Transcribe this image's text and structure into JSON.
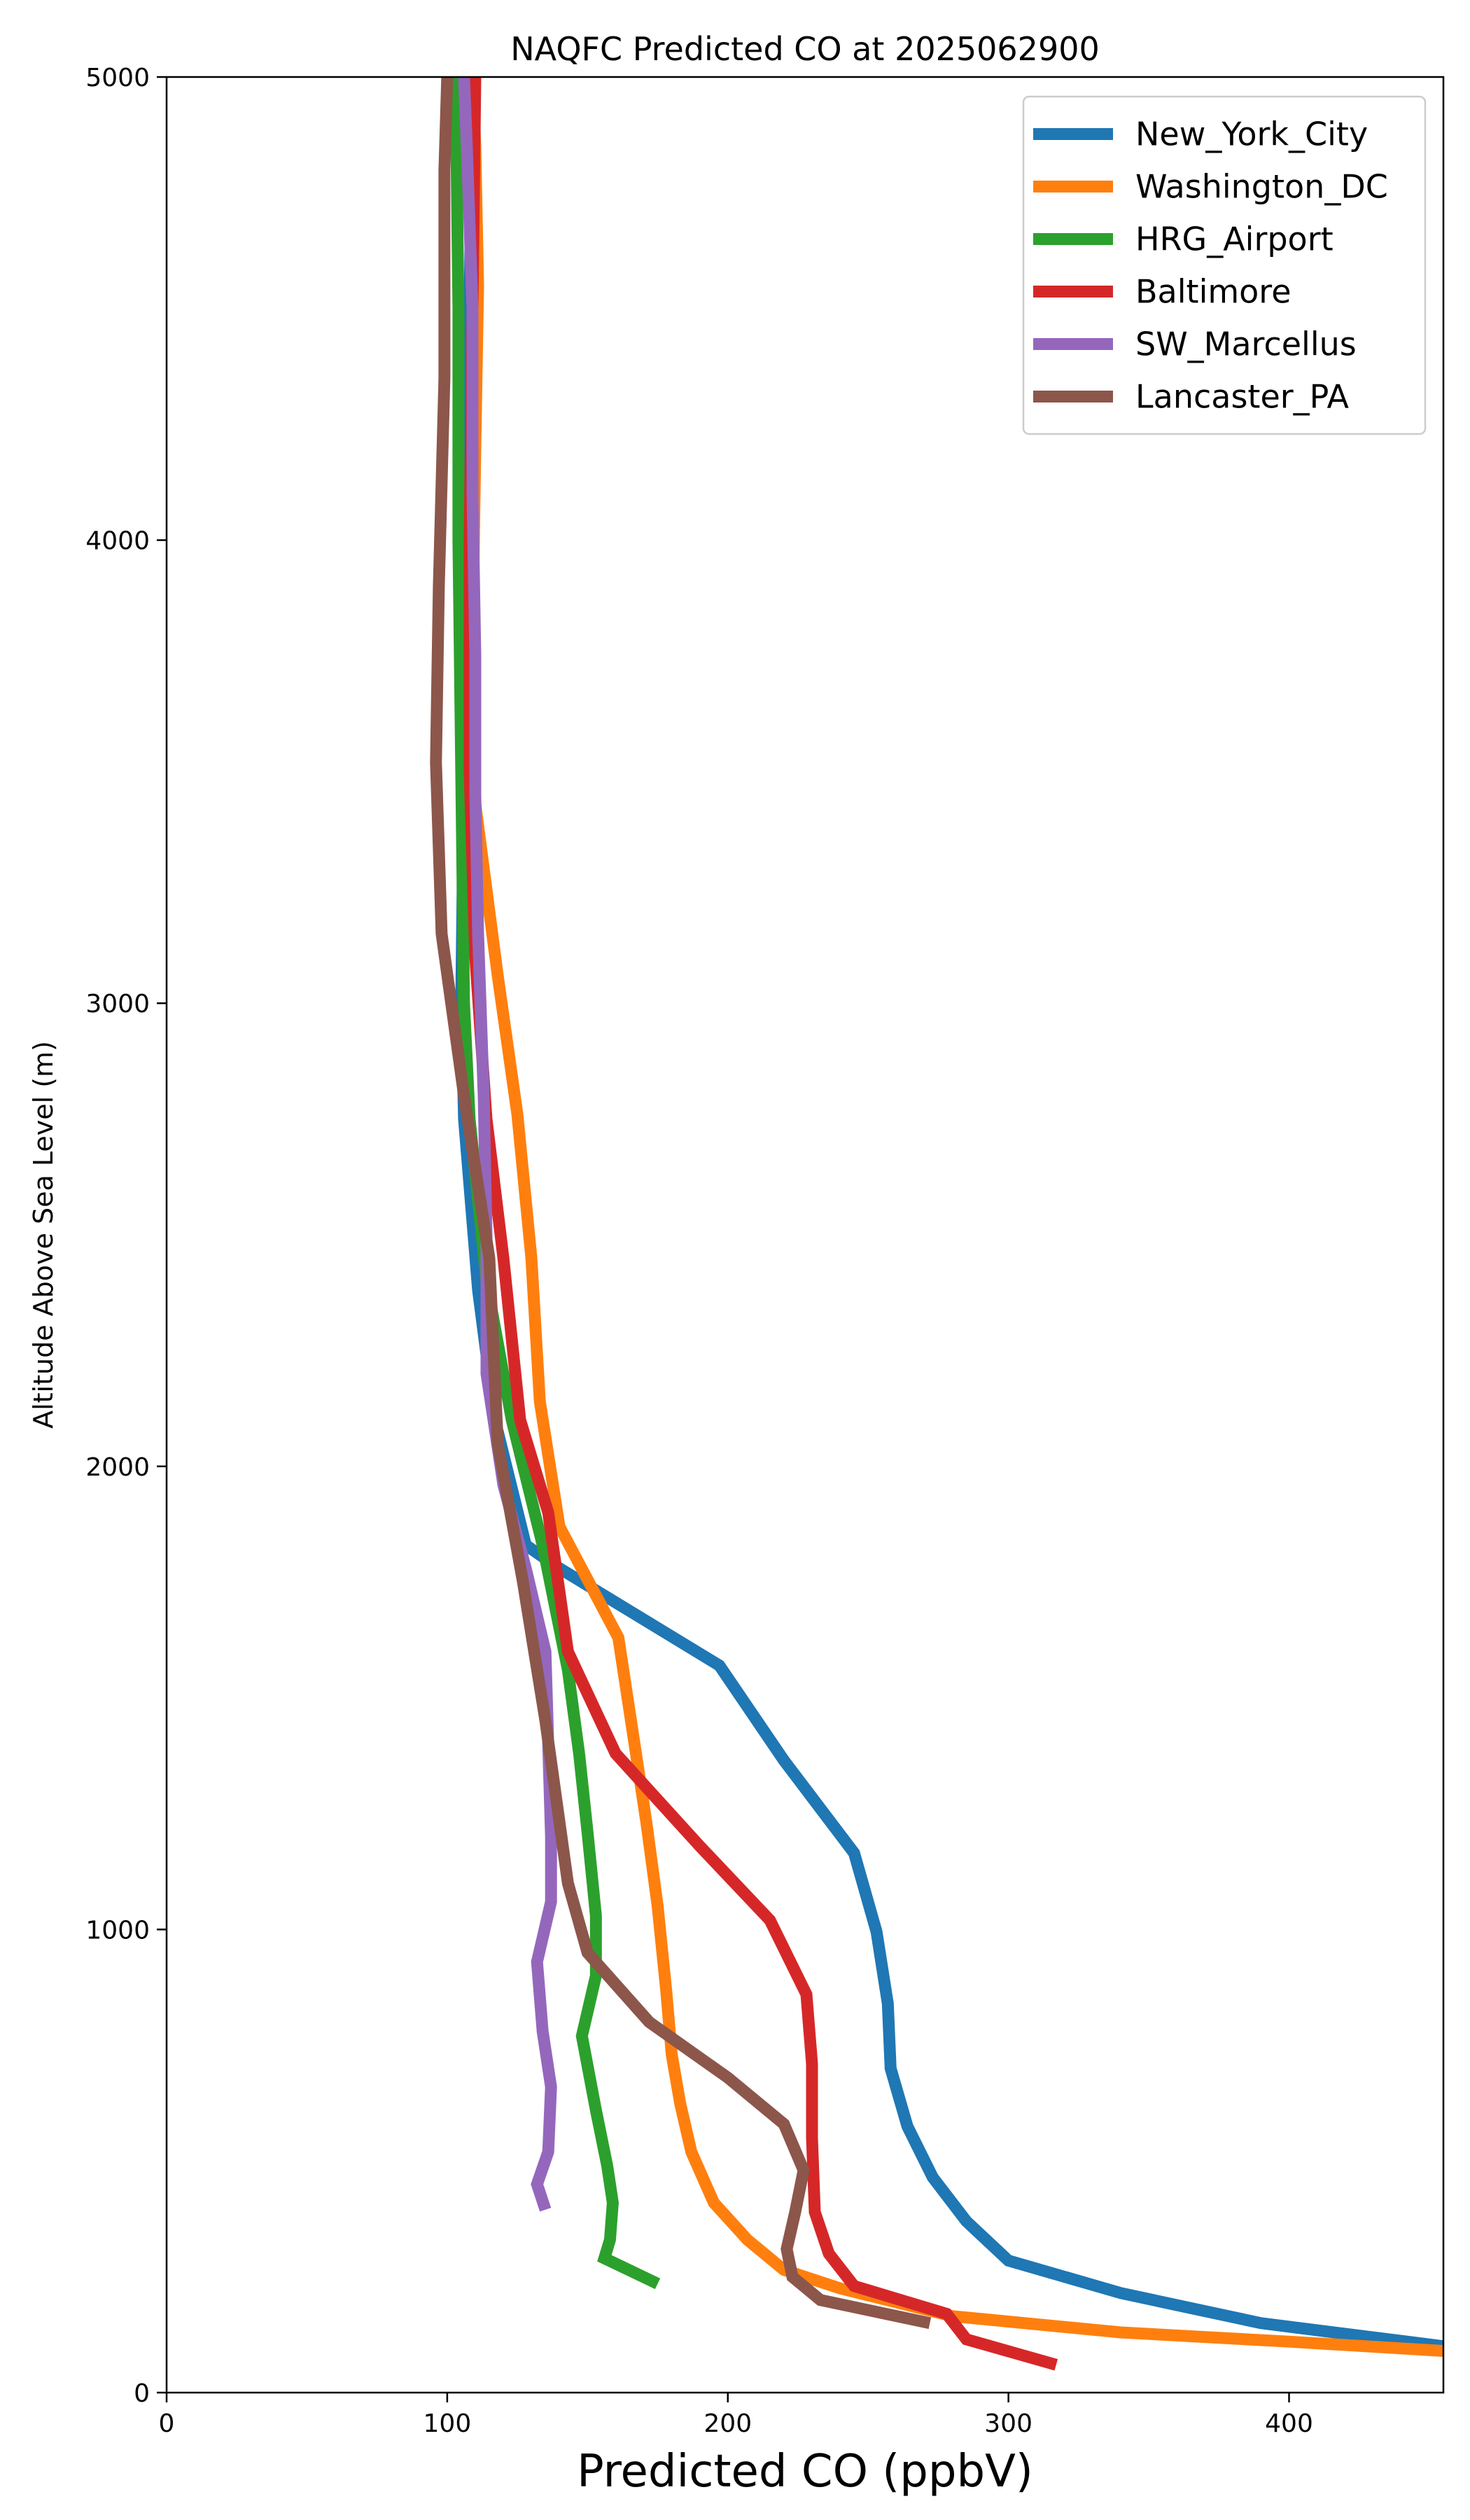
{
  "chart_data": {
    "type": "line",
    "title": "NAQFC Predicted CO at 2025062900",
    "xlabel": "Predicted CO (ppbV)",
    "ylabel": "Altitude Above Sea Level (m)",
    "xlim": [
      0,
      455
    ],
    "ylim": [
      0,
      5000
    ],
    "xticks": [
      0,
      100,
      200,
      300,
      400
    ],
    "yticks": [
      0,
      1000,
      2000,
      3000,
      4000,
      5000
    ],
    "grid": false,
    "legend_position": "top-right",
    "series": [
      {
        "name": "New_York_City",
        "color": "#1f77b4",
        "points": [
          [
            455,
            100
          ],
          [
            390,
            150
          ],
          [
            340,
            215
          ],
          [
            300,
            285
          ],
          [
            285,
            370
          ],
          [
            273,
            465
          ],
          [
            264,
            575
          ],
          [
            258,
            700
          ],
          [
            257,
            840
          ],
          [
            253,
            995
          ],
          [
            245,
            1165
          ],
          [
            220,
            1365
          ],
          [
            197,
            1570
          ],
          [
            140,
            1780
          ],
          [
            128,
            1830
          ],
          [
            117,
            2100
          ],
          [
            111,
            2380
          ],
          [
            106,
            2750
          ],
          [
            105,
            3000
          ],
          [
            106,
            3500
          ],
          [
            107,
            4000
          ],
          [
            108,
            4500
          ],
          [
            109,
            5000
          ]
        ]
      },
      {
        "name": "Washington_DC",
        "color": "#ff7f0e",
        "points": [
          [
            455,
            90
          ],
          [
            400,
            110
          ],
          [
            340,
            130
          ],
          [
            280,
            165
          ],
          [
            240,
            225
          ],
          [
            220,
            265
          ],
          [
            207,
            330
          ],
          [
            195,
            410
          ],
          [
            187,
            520
          ],
          [
            183,
            625
          ],
          [
            180,
            730
          ],
          [
            178,
            870
          ],
          [
            175,
            1050
          ],
          [
            171,
            1230
          ],
          [
            167,
            1390
          ],
          [
            161,
            1630
          ],
          [
            140,
            1870
          ],
          [
            133,
            2140
          ],
          [
            130,
            2450
          ],
          [
            125,
            2760
          ],
          [
            118,
            3060
          ],
          [
            110,
            3430
          ],
          [
            109,
            3800
          ],
          [
            110,
            4200
          ],
          [
            111,
            4550
          ],
          [
            110,
            4850
          ],
          [
            109,
            5000
          ]
        ]
      },
      {
        "name": "HRG_Airport",
        "color": "#2ca02c",
        "points": [
          [
            175,
            235
          ],
          [
            156,
            290
          ],
          [
            158,
            330
          ],
          [
            159,
            410
          ],
          [
            157,
            490
          ],
          [
            153,
            610
          ],
          [
            148,
            770
          ],
          [
            153,
            900
          ],
          [
            153,
            1030
          ],
          [
            150,
            1210
          ],
          [
            147,
            1380
          ],
          [
            143,
            1560
          ],
          [
            134,
            1830
          ],
          [
            123,
            2100
          ],
          [
            114,
            2400
          ],
          [
            108,
            2750
          ],
          [
            106,
            3000
          ],
          [
            105,
            3500
          ],
          [
            104,
            4000
          ],
          [
            104,
            4500
          ],
          [
            103,
            5000
          ]
        ]
      },
      {
        "name": "Baltimore",
        "color": "#d62728",
        "points": [
          [
            317,
            60
          ],
          [
            285,
            115
          ],
          [
            278,
            170
          ],
          [
            245,
            230
          ],
          [
            236,
            300
          ],
          [
            231,
            390
          ],
          [
            230,
            550
          ],
          [
            230,
            710
          ],
          [
            228,
            860
          ],
          [
            215,
            1020
          ],
          [
            190,
            1180
          ],
          [
            160,
            1380
          ],
          [
            143,
            1600
          ],
          [
            136,
            1900
          ],
          [
            126,
            2100
          ],
          [
            120,
            2450
          ],
          [
            114,
            2750
          ],
          [
            110,
            3100
          ],
          [
            108,
            3500
          ],
          [
            108,
            4000
          ],
          [
            109,
            4500
          ],
          [
            110,
            5000
          ]
        ]
      },
      {
        "name": "SW_Marcellus",
        "color": "#9467bd",
        "points": [
          [
            135,
            395
          ],
          [
            132,
            450
          ],
          [
            136,
            520
          ],
          [
            137,
            660
          ],
          [
            134,
            780
          ],
          [
            132,
            930
          ],
          [
            137,
            1060
          ],
          [
            137,
            1200
          ],
          [
            136,
            1400
          ],
          [
            135,
            1600
          ],
          [
            128,
            1780
          ],
          [
            120,
            1960
          ],
          [
            114,
            2200
          ],
          [
            114,
            2500
          ],
          [
            113,
            2800
          ],
          [
            111,
            3150
          ],
          [
            110,
            3450
          ],
          [
            110,
            3750
          ],
          [
            109,
            4100
          ],
          [
            109,
            4500
          ],
          [
            107,
            4850
          ],
          [
            106,
            5000
          ]
        ]
      },
      {
        "name": "Lancaster_PA",
        "color": "#8c564b",
        "points": [
          [
            272,
            150
          ],
          [
            233,
            200
          ],
          [
            223,
            250
          ],
          [
            221,
            310
          ],
          [
            224,
            390
          ],
          [
            227,
            480
          ],
          [
            220,
            580
          ],
          [
            200,
            680
          ],
          [
            172,
            800
          ],
          [
            150,
            950
          ],
          [
            143,
            1100
          ],
          [
            135,
            1450
          ],
          [
            127,
            1750
          ],
          [
            118,
            2050
          ],
          [
            115,
            2450
          ],
          [
            106,
            2800
          ],
          [
            98,
            3150
          ],
          [
            96,
            3520
          ],
          [
            97,
            3900
          ],
          [
            99,
            4350
          ],
          [
            99,
            4800
          ],
          [
            100,
            5000
          ]
        ]
      }
    ]
  }
}
